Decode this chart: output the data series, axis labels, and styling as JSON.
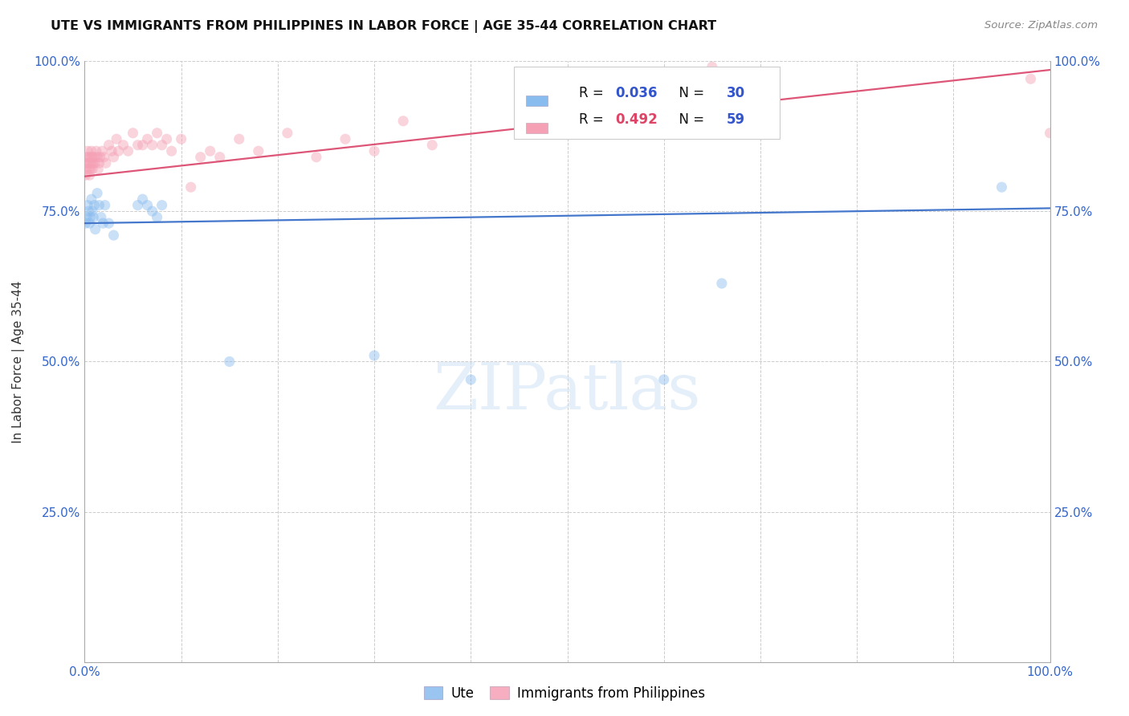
{
  "title": "UTE VS IMMIGRANTS FROM PHILIPPINES IN LABOR FORCE | AGE 35-44 CORRELATION CHART",
  "source": "Source: ZipAtlas.com",
  "ylabel": "In Labor Force | Age 35-44",
  "xlim": [
    0.0,
    1.0
  ],
  "ylim": [
    0.0,
    1.0
  ],
  "xtick_positions": [
    0.0,
    0.1,
    0.2,
    0.3,
    0.4,
    0.5,
    0.6,
    0.7,
    0.8,
    0.9,
    1.0
  ],
  "xtick_labels": [
    "0.0%",
    "",
    "",
    "",
    "",
    "",
    "",
    "",
    "",
    "",
    "100.0%"
  ],
  "ytick_positions": [
    0.0,
    0.25,
    0.5,
    0.75,
    1.0
  ],
  "ytick_labels": [
    "",
    "25.0%",
    "50.0%",
    "75.0%",
    "100.0%"
  ],
  "background_color": "#ffffff",
  "grid_color": "#cccccc",
  "ute_color": "#88bbee",
  "phil_color": "#f5a0b5",
  "ute_line_color": "#4477cc",
  "phil_line_color": "#dd5577",
  "ute_R": "0.036",
  "ute_N": "30",
  "phil_R": "0.492",
  "phil_N": "59",
  "R_label_color": "#000000",
  "N_value_color": "#3355cc",
  "R_value_ute_color": "#3355cc",
  "R_value_phil_color": "#dd4466",
  "watermark": "ZIPatlas",
  "watermark_color": "#cce0f5",
  "watermark_alpha": 0.5,
  "marker_size": 90,
  "marker_alpha": 0.45,
  "line_width": 1.6,
  "ute_x": [
    0.001,
    0.002,
    0.003,
    0.004,
    0.005,
    0.006,
    0.007,
    0.008,
    0.009,
    0.01,
    0.011,
    0.013,
    0.015,
    0.017,
    0.019,
    0.021,
    0.025,
    0.03,
    0.055,
    0.06,
    0.065,
    0.07,
    0.075,
    0.08,
    0.15,
    0.3,
    0.4,
    0.6,
    0.66,
    0.95
  ],
  "ute_y": [
    0.73,
    0.74,
    0.76,
    0.75,
    0.73,
    0.74,
    0.77,
    0.75,
    0.74,
    0.76,
    0.72,
    0.78,
    0.76,
    0.74,
    0.73,
    0.76,
    0.73,
    0.71,
    0.76,
    0.77,
    0.76,
    0.75,
    0.74,
    0.76,
    0.5,
    0.51,
    0.47,
    0.47,
    0.63,
    0.79
  ],
  "phil_x": [
    0.001,
    0.001,
    0.002,
    0.002,
    0.003,
    0.003,
    0.004,
    0.004,
    0.005,
    0.005,
    0.006,
    0.006,
    0.007,
    0.007,
    0.008,
    0.008,
    0.009,
    0.01,
    0.011,
    0.012,
    0.013,
    0.014,
    0.015,
    0.016,
    0.018,
    0.02,
    0.022,
    0.025,
    0.028,
    0.03,
    0.033,
    0.035,
    0.04,
    0.045,
    0.05,
    0.055,
    0.06,
    0.065,
    0.07,
    0.075,
    0.08,
    0.085,
    0.09,
    0.1,
    0.11,
    0.12,
    0.13,
    0.14,
    0.16,
    0.18,
    0.21,
    0.24,
    0.27,
    0.3,
    0.33,
    0.36,
    0.65,
    0.98,
    1.0
  ],
  "phil_y": [
    0.83,
    0.81,
    0.82,
    0.84,
    0.83,
    0.85,
    0.82,
    0.84,
    0.83,
    0.81,
    0.84,
    0.82,
    0.83,
    0.85,
    0.82,
    0.84,
    0.83,
    0.84,
    0.83,
    0.85,
    0.84,
    0.82,
    0.83,
    0.84,
    0.85,
    0.84,
    0.83,
    0.86,
    0.85,
    0.84,
    0.87,
    0.85,
    0.86,
    0.85,
    0.88,
    0.86,
    0.86,
    0.87,
    0.86,
    0.88,
    0.86,
    0.87,
    0.85,
    0.87,
    0.79,
    0.84,
    0.85,
    0.84,
    0.87,
    0.85,
    0.88,
    0.84,
    0.87,
    0.85,
    0.9,
    0.86,
    0.99,
    0.97,
    0.88
  ]
}
